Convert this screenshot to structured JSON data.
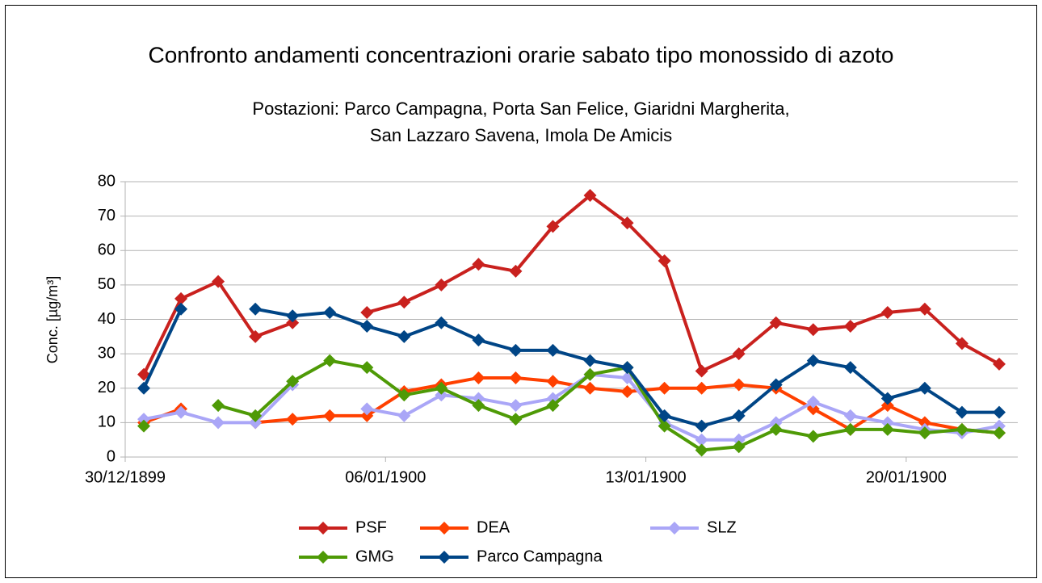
{
  "chart_data": {
    "type": "line",
    "title": "Confronto andamenti concentrazioni orarie sabato tipo monossido di azoto",
    "subtitle": [
      "Postazioni: Parco Campagna, Porta San Felice, Giaridni Margherita,",
      "San Lazzaro Savena, Imola De Amicis"
    ],
    "y_label": "Conc. [µg/m³]",
    "x": [
      0.5,
      1.5,
      2.5,
      3.5,
      4.5,
      5.5,
      6.5,
      7.5,
      8.5,
      9.5,
      10.5,
      11.5,
      12.5,
      13.5,
      14.5,
      15.5,
      16.5,
      17.5,
      18.5,
      19.5,
      20.5,
      21.5,
      22.5,
      23.5
    ],
    "xlim": [
      0,
      24
    ],
    "xticks": [
      {
        "value": 0,
        "label": "30/12/1899"
      },
      {
        "value": 7,
        "label": "06/01/1900"
      },
      {
        "value": 14,
        "label": "13/01/1900"
      },
      {
        "value": 21,
        "label": "20/01/1900"
      }
    ],
    "ylim": [
      0,
      80
    ],
    "yticks": [
      0,
      10,
      20,
      30,
      40,
      50,
      60,
      70,
      80
    ],
    "grid": true,
    "legend": "bottom",
    "series": [
      {
        "name": "PSF",
        "color": "#c9211e",
        "values": [
          24,
          46,
          51,
          35,
          39,
          null,
          42,
          45,
          50,
          56,
          54,
          67,
          76,
          68,
          57,
          25,
          30,
          39,
          37,
          38,
          42,
          43,
          33,
          27
        ]
      },
      {
        "name": "DEA",
        "color": "#ff4000",
        "values": [
          10,
          14,
          null,
          10,
          11,
          12,
          12,
          19,
          21,
          23,
          23,
          22,
          20,
          19,
          20,
          20,
          21,
          20,
          14,
          8,
          15,
          10,
          8,
          7
        ]
      },
      {
        "name": "SLZ",
        "color": "#aaa6f7",
        "values": [
          11,
          13,
          10,
          10,
          21,
          null,
          14,
          12,
          18,
          17,
          15,
          17,
          24,
          23,
          10,
          5,
          5,
          10,
          16,
          12,
          10,
          8,
          7,
          9
        ]
      },
      {
        "name": "GMG",
        "color": "#4e9a06",
        "values": [
          9,
          null,
          15,
          12,
          22,
          28,
          26,
          18,
          20,
          15,
          11,
          15,
          24,
          26,
          9,
          2,
          3,
          8,
          6,
          8,
          8,
          7,
          8,
          7
        ]
      },
      {
        "name": "Parco Campagna",
        "color": "#004586",
        "values": [
          20,
          43,
          null,
          43,
          41,
          42,
          38,
          35,
          39,
          34,
          31,
          31,
          28,
          26,
          12,
          9,
          12,
          21,
          28,
          26,
          17,
          20,
          13,
          13
        ]
      }
    ]
  }
}
